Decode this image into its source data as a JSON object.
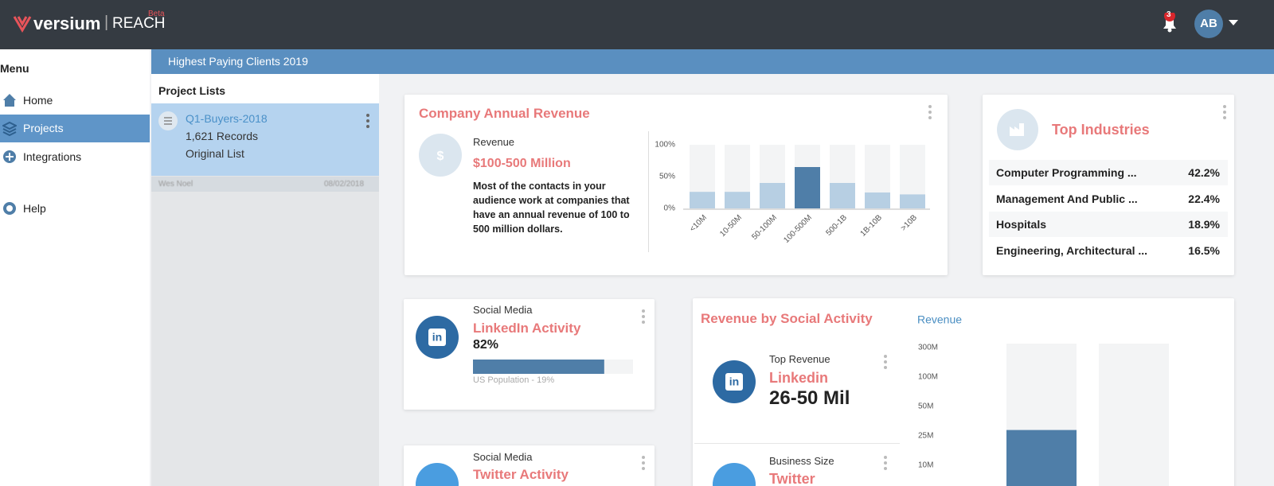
{
  "header": {
    "brand": "versium",
    "product": "REACH",
    "badge": "Beta",
    "notifications": "3",
    "avatar": "AB"
  },
  "menu": {
    "title": "Menu",
    "items": [
      "Home",
      "Projects",
      "Integrations",
      "Help"
    ]
  },
  "banner": "Highest Paying Clients 2019",
  "project_lists": {
    "title": "Project Lists",
    "items": [
      {
        "name": "Q1-Buyers-2018",
        "records": "1,621 Records",
        "type": "Original List",
        "owner": "Wes Noel",
        "date": "08/02/2018"
      }
    ]
  },
  "revenue_card": {
    "label": "Revenue",
    "value": "$100-500 Million",
    "description": "Most of the contacts in your audience work at companies that have an annual revenue of 100 to 500 million dollars.",
    "chart_data": {
      "type": "bar",
      "title": "Company Annual Revenue",
      "categories": [
        "<10M",
        "10-50M",
        "50-100M",
        "100-500M",
        "500-1B",
        "1B-10B",
        ">10B"
      ],
      "values": [
        26,
        26,
        40,
        65,
        40,
        25,
        22
      ],
      "colors": [
        "#b7cfe3",
        "#b7cfe3",
        "#b7cfe3",
        "#4f7ea8",
        "#b7cfe3",
        "#b7cfe3",
        "#b7cfe3"
      ],
      "ylim": [
        0,
        100
      ],
      "yticks": [
        {
          "value": 0,
          "label": "0%"
        },
        {
          "value": 50,
          "label": "50%"
        },
        {
          "value": 100,
          "label": "100%"
        }
      ],
      "grid": false
    }
  },
  "industries": {
    "title": "Top Industries",
    "rows": [
      [
        "Computer Programming ...",
        "42.2%"
      ],
      [
        "Management And Public ...",
        "22.4%"
      ],
      [
        "Hospitals",
        "18.9%"
      ],
      [
        "Engineering, Architectural ...",
        "16.5%"
      ]
    ]
  },
  "linkedin_card": {
    "label": "Social Media",
    "title": "LinkedIn Activity",
    "value": 82,
    "value_label": "82%",
    "note": "US Population - 19%",
    "color": "#4f7ea8"
  },
  "twitter_card": {
    "label": "Social Media",
    "title": "Twitter Activity"
  },
  "social_card": {
    "items": [
      {
        "label": "Top Revenue",
        "title": "Linkedin",
        "value": "26-50 Mil"
      },
      {
        "label": "Business Size",
        "title": "Twitter"
      }
    ],
    "chart_data": {
      "type": "bar",
      "title": "Revenue by Social Activity",
      "categories": [
        null,
        null
      ],
      "series": [
        {
          "name": "Revenue",
          "color": "#4f7ea8",
          "values": [
            30000000,
            null
          ]
        }
      ],
      "ylim": [
        10000000,
        300000000
      ],
      "yticks": [
        {
          "value": 300000000,
          "label": "300M"
        },
        {
          "value": 100000000,
          "label": "100M"
        },
        {
          "value": 50000000,
          "label": "50M"
        },
        {
          "value": 25000000,
          "label": "25M"
        },
        {
          "value": 10000000,
          "label": "10M"
        }
      ],
      "grid": false
    }
  }
}
